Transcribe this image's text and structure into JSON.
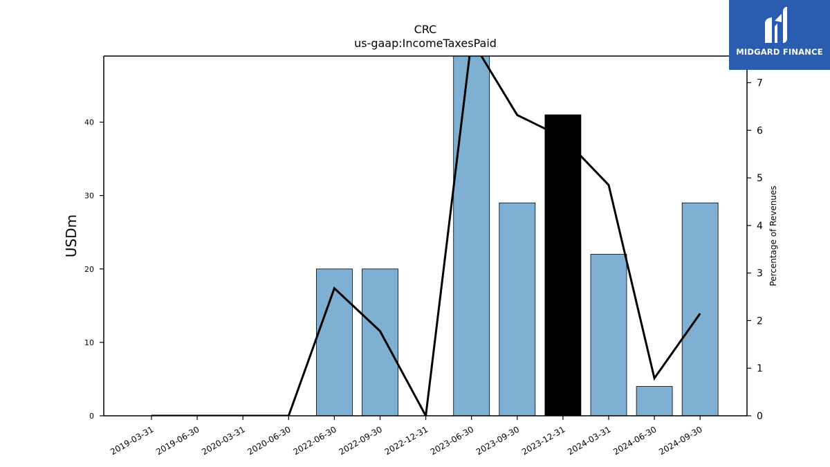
{
  "brand": {
    "name": "MIDGARD FINANCE",
    "icon": "midgard-logo-icon",
    "background_color": "#2a5db0"
  },
  "chart_data": {
    "type": "bar",
    "title": "CRC",
    "subtitle": "us-gaap:IncomeTaxesPaid",
    "ylabel": "USDm",
    "y2label": "Percentage of Revenues",
    "categories": [
      "2019-03-31",
      "2019-06-30",
      "2020-03-31",
      "2020-06-30",
      "2022-06-30",
      "2022-09-30",
      "2022-12-31",
      "2023-06-30",
      "2023-09-30",
      "2023-12-31",
      "2024-03-31",
      "2024-06-30",
      "2024-09-30"
    ],
    "series": [
      {
        "type": "bar",
        "axis": "left",
        "values": [
          0,
          0,
          0,
          0,
          20,
          20,
          0,
          49,
          29,
          41,
          22,
          4,
          29
        ],
        "colors": [
          "#7fb0d4",
          "#7fb0d4",
          "#7fb0d4",
          "#7fb0d4",
          "#7fb0d4",
          "#7fb0d4",
          "#7fb0d4",
          "#7fb0d4",
          "#7fb0d4",
          "#000000",
          "#7fb0d4",
          "#7fb0d4",
          "#7fb0d4"
        ]
      },
      {
        "type": "line",
        "axis": "right",
        "color": "#000000",
        "values": [
          0,
          0,
          0,
          0,
          2.68,
          1.78,
          0,
          7.9,
          6.32,
          5.85,
          4.85,
          0.79,
          2.15
        ]
      }
    ],
    "ylim": [
      0,
      49
    ],
    "y2lim": [
      0,
      7.56
    ],
    "yticks": [
      0,
      10,
      20,
      30,
      40
    ],
    "y2ticks": [
      0,
      1,
      2,
      3,
      4,
      5,
      6,
      7
    ],
    "grid": false,
    "legend": "none"
  }
}
